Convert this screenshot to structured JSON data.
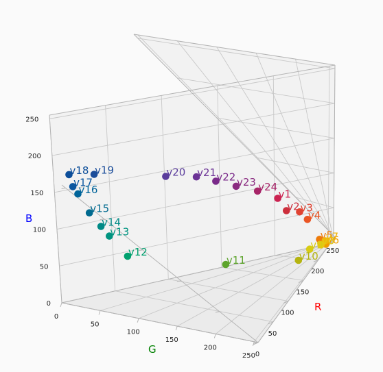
{
  "chart_data": {
    "type": "scatter",
    "projection": "3d",
    "title": "",
    "axes": {
      "x": {
        "label": "R",
        "color": "#ff0000",
        "ticks": [
          0,
          50,
          100,
          150,
          200,
          250
        ],
        "range": [
          0,
          255
        ]
      },
      "y": {
        "label": "G",
        "color": "#008000",
        "ticks": [
          0,
          50,
          100,
          150,
          200,
          250
        ],
        "range": [
          0,
          255
        ]
      },
      "z": {
        "label": "B",
        "color": "#0000ff",
        "ticks": [
          0,
          50,
          100,
          150,
          200,
          250
        ],
        "range": [
          0,
          255
        ]
      }
    },
    "grid": true,
    "points": [
      {
        "name": "v1",
        "r": 206,
        "g": 36,
        "b": 79,
        "color": "#cb2250"
      },
      {
        "name": "v2",
        "r": 213,
        "g": 44,
        "b": 59,
        "color": "#cc2e3c"
      },
      {
        "name": "v3",
        "r": 228,
        "g": 73,
        "b": 51,
        "color": "#e04332"
      },
      {
        "name": "v4",
        "r": 235,
        "g": 100,
        "b": 37,
        "color": "#ea5524"
      },
      {
        "name": "v5",
        "r": 238,
        "g": 130,
        "b": 8,
        "color": "#ed7a0a"
      },
      {
        "name": "v6",
        "r": 240,
        "g": 164,
        "b": 0,
        "color": "#f09d00"
      },
      {
        "name": "v7",
        "r": 240,
        "g": 200,
        "b": 4,
        "color": "#efb50a"
      },
      {
        "name": "v8",
        "r": 229,
        "g": 213,
        "b": 4,
        "color": "#e6c812"
      },
      {
        "name": "v9",
        "r": 210,
        "g": 208,
        "b": 8,
        "color": "#d8cb14"
      },
      {
        "name": "v10",
        "r": 186,
        "g": 195,
        "b": 5,
        "color": "#b5b410"
      },
      {
        "name": "v11",
        "r": 100,
        "g": 169,
        "b": 42,
        "color": "#5da42c"
      },
      {
        "name": "v12",
        "r": 0,
        "g": 150,
        "b": 105,
        "color": "#00a06e"
      },
      {
        "name": "v13",
        "r": 0,
        "g": 134,
        "b": 130,
        "color": "#009480"
      },
      {
        "name": "v14",
        "r": 0,
        "g": 124,
        "b": 141,
        "color": "#008a86"
      },
      {
        "name": "v15",
        "r": 0,
        "g": 106,
        "b": 155,
        "color": "#006a8f"
      },
      {
        "name": "v16",
        "r": 0,
        "g": 93,
        "b": 178,
        "color": "#00649a"
      },
      {
        "name": "v17",
        "r": 0,
        "g": 80,
        "b": 184,
        "color": "#0a56a0"
      },
      {
        "name": "v18",
        "r": 3,
        "g": 63,
        "b": 194,
        "color": "#0c4e9a"
      },
      {
        "name": "v19",
        "r": 28,
        "g": 66,
        "b": 185,
        "color": "#1b4d9a"
      },
      {
        "name": "v20",
        "r": 100,
        "g": 50,
        "b": 150,
        "color": "#5a3c9c"
      },
      {
        "name": "v21",
        "r": 130,
        "g": 41,
        "b": 137,
        "color": "#6c3396"
      },
      {
        "name": "v22",
        "r": 148,
        "g": 36,
        "b": 124,
        "color": "#7a2a8a"
      },
      {
        "name": "v23",
        "r": 167,
        "g": 35,
        "b": 110,
        "color": "#8a2a80"
      },
      {
        "name": "v24",
        "r": 187,
        "g": 33,
        "b": 96,
        "color": "#a72468"
      }
    ]
  }
}
